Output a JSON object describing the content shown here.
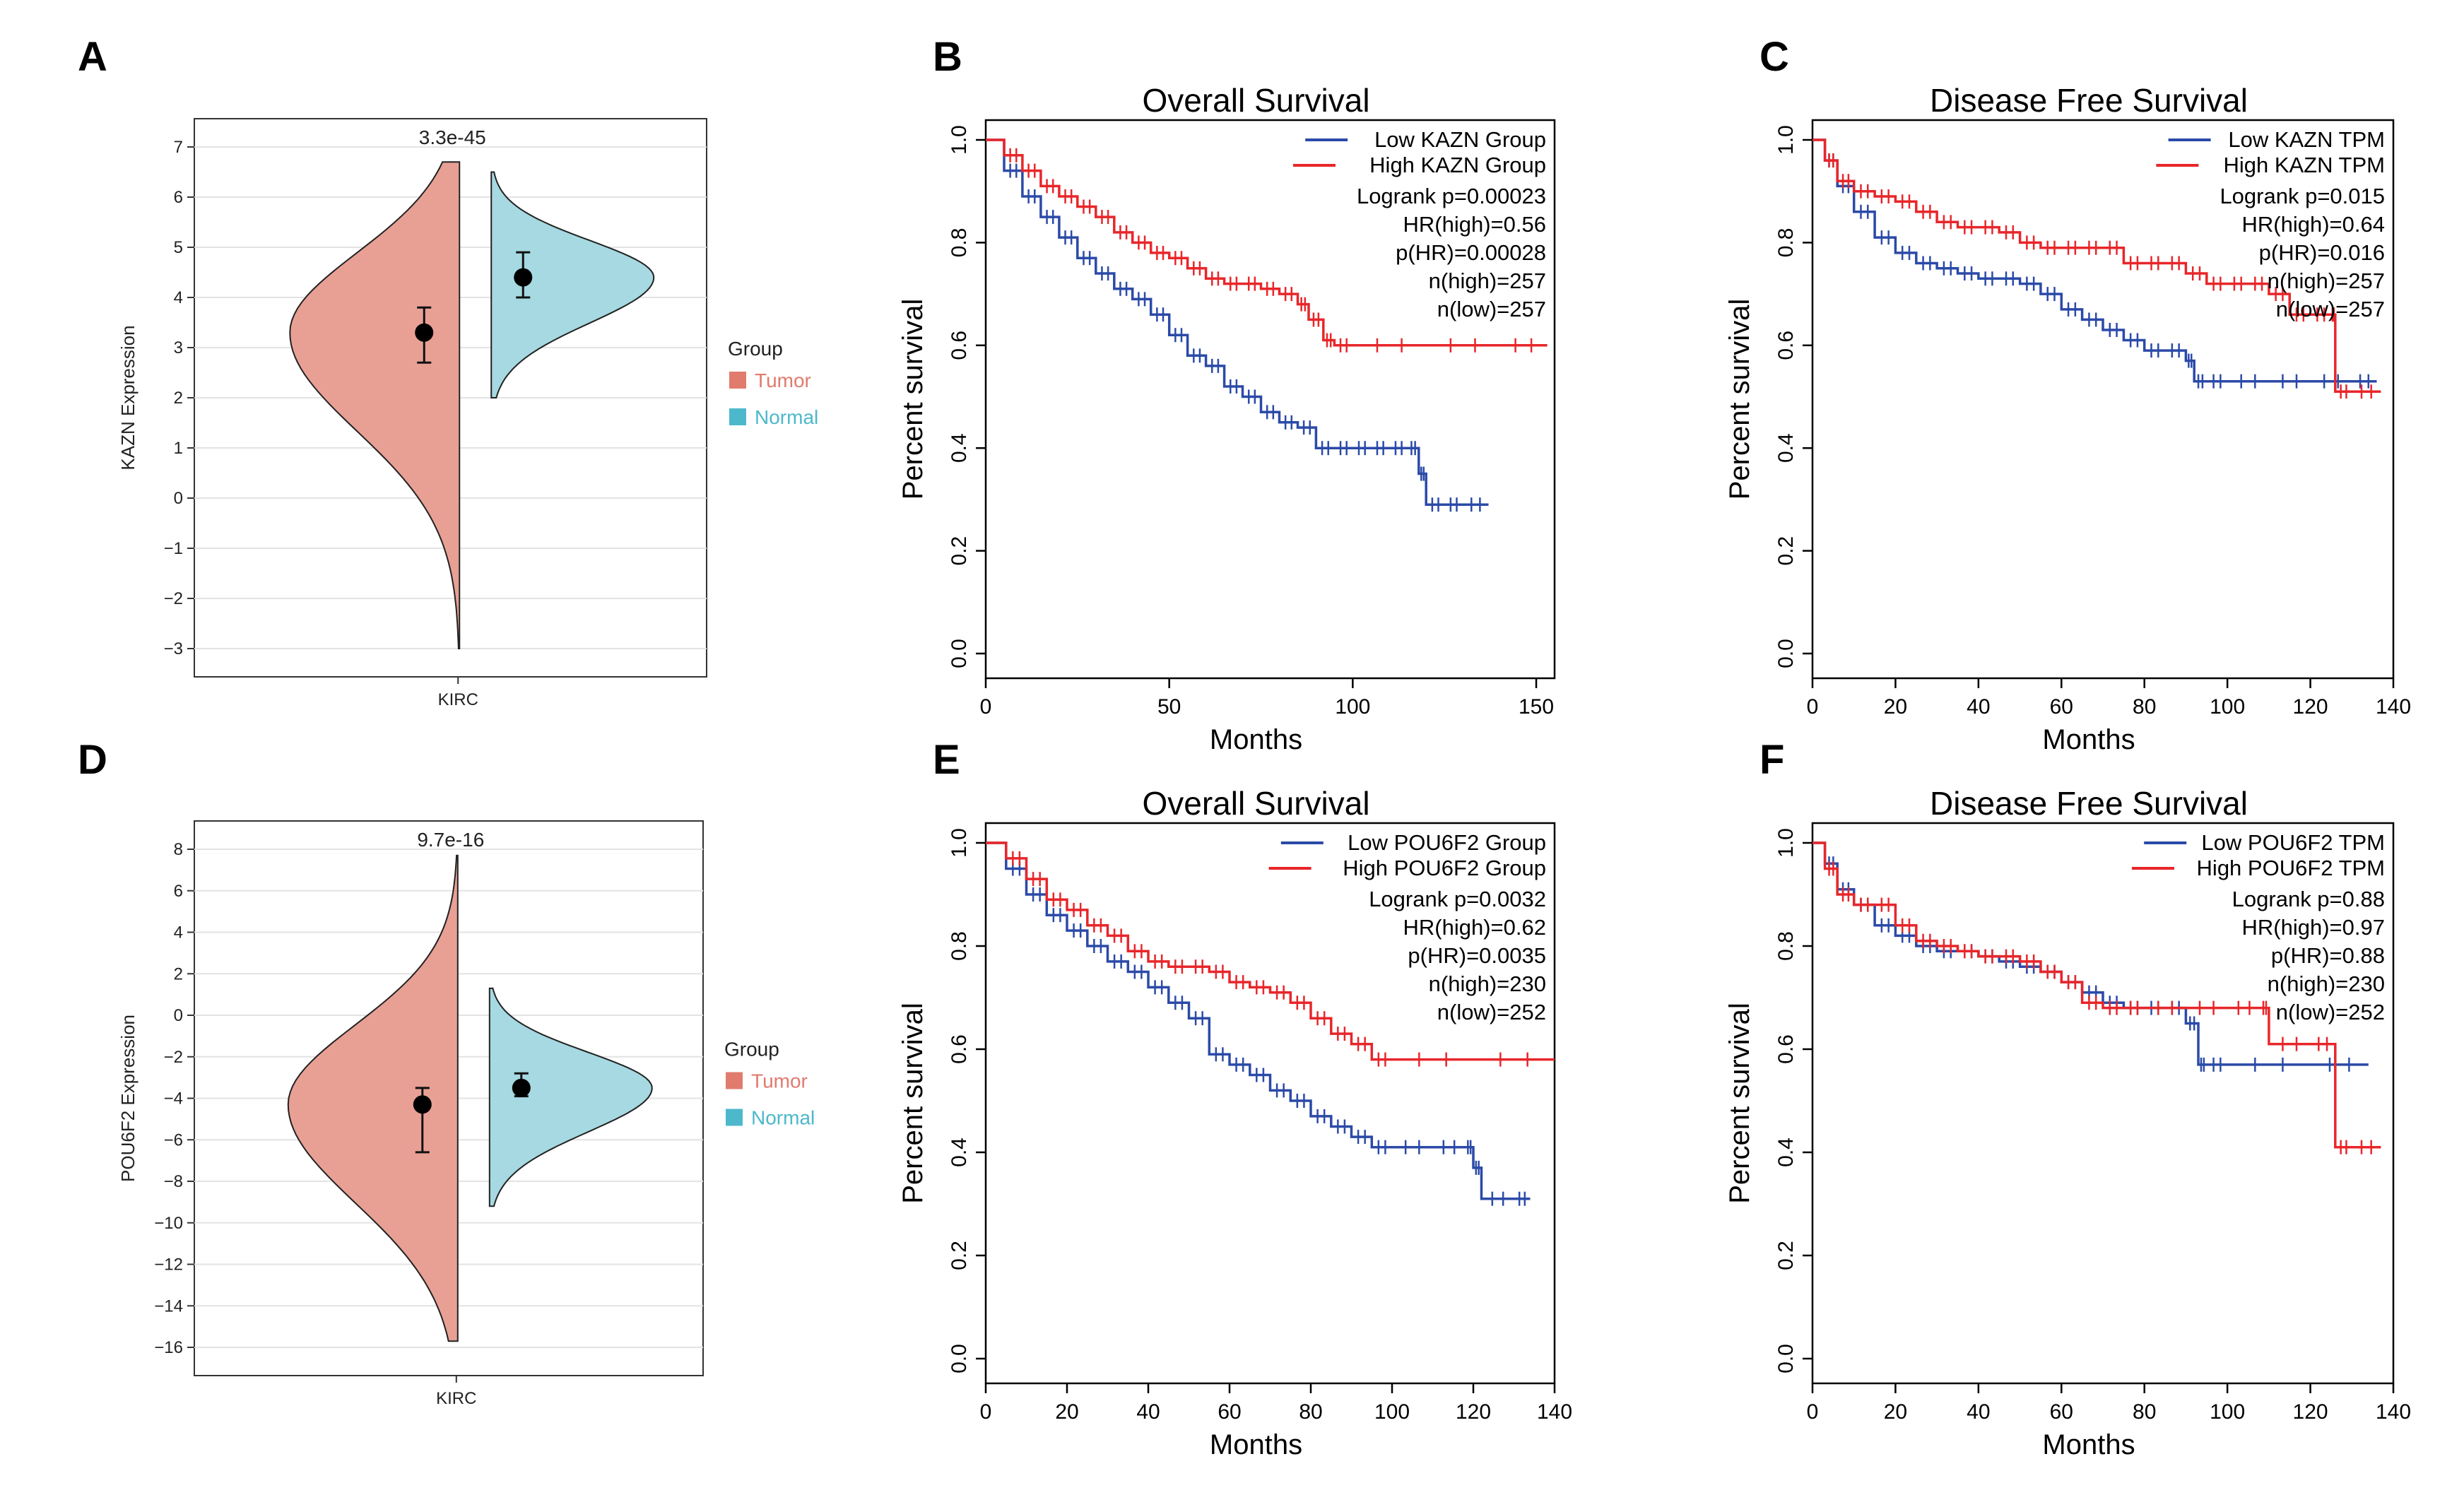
{
  "chart_data": [
    {
      "panel": "A",
      "type": "violin",
      "title": "",
      "ylabel": "KAZN Expression",
      "xlabel": "",
      "category": "KIRC",
      "pvalue": "3.3e-45",
      "ylim": [
        -3,
        7
      ],
      "yticks": [
        "7",
        "6",
        "5",
        "4",
        "3",
        "2",
        "1",
        "0",
        "−1",
        "−2",
        "−3"
      ],
      "legend_title": "Group",
      "groups": [
        {
          "name": "Tumor",
          "color": "#e07b6e",
          "fill": "#e8a095",
          "median": 3.3,
          "q1": 2.7,
          "q3": 3.8,
          "min": -3.0,
          "max": 6.7,
          "peak": 3.3
        },
        {
          "name": "Normal",
          "color": "#4db8cc",
          "fill": "#a6d9e2",
          "median": 4.4,
          "q1": 4.0,
          "q3": 4.9,
          "min": 2.0,
          "max": 6.5,
          "peak": 4.4
        }
      ]
    },
    {
      "panel": "B",
      "type": "line",
      "title": "Overall Survival",
      "xlabel": "Months",
      "ylabel": "Percent survival",
      "xlim": [
        0,
        155
      ],
      "ylim": [
        0,
        1
      ],
      "xticks": [
        0,
        50,
        100,
        150
      ],
      "yticks": [
        "0.0",
        "0.2",
        "0.4",
        "0.6",
        "0.8",
        "1.0"
      ],
      "legend": [
        "Low KAZN Group",
        "High KAZN Group"
      ],
      "stats": [
        "Logrank p=0.00023",
        "HR(high)=0.56",
        "p(HR)=0.00028",
        "n(high)=257",
        "n(low)=257"
      ],
      "series": [
        {
          "name": "Low KAZN Group",
          "color": "#2b4aa8",
          "x": [
            0,
            5,
            10,
            15,
            20,
            25,
            30,
            35,
            40,
            45,
            50,
            55,
            60,
            65,
            70,
            75,
            80,
            85,
            90,
            95,
            100,
            105,
            110,
            115,
            118,
            120,
            125,
            130,
            137
          ],
          "y": [
            1.0,
            0.94,
            0.89,
            0.85,
            0.81,
            0.77,
            0.74,
            0.71,
            0.69,
            0.66,
            0.62,
            0.58,
            0.56,
            0.52,
            0.5,
            0.47,
            0.45,
            0.44,
            0.4,
            0.4,
            0.4,
            0.4,
            0.4,
            0.4,
            0.35,
            0.29,
            0.29,
            0.29,
            0.29
          ]
        },
        {
          "name": "High KAZN Group",
          "color": "#e8262a",
          "x": [
            0,
            5,
            10,
            15,
            20,
            25,
            30,
            35,
            40,
            45,
            50,
            55,
            60,
            65,
            70,
            75,
            80,
            85,
            88,
            92,
            95,
            100,
            120,
            140,
            153
          ],
          "y": [
            1.0,
            0.97,
            0.94,
            0.91,
            0.89,
            0.87,
            0.85,
            0.82,
            0.8,
            0.78,
            0.77,
            0.75,
            0.73,
            0.72,
            0.72,
            0.71,
            0.7,
            0.68,
            0.65,
            0.61,
            0.6,
            0.6,
            0.6,
            0.6,
            0.6
          ]
        }
      ]
    },
    {
      "panel": "C",
      "type": "line",
      "title": "Disease Free Survival",
      "xlabel": "Months",
      "ylabel": "Percent survival",
      "xlim": [
        0,
        140
      ],
      "ylim": [
        0,
        1
      ],
      "xticks": [
        0,
        20,
        40,
        60,
        80,
        100,
        120,
        140
      ],
      "yticks": [
        "0.0",
        "0.2",
        "0.4",
        "0.6",
        "0.8",
        "1.0"
      ],
      "legend": [
        "Low KAZN TPM",
        "High KAZN TPM"
      ],
      "stats": [
        "Logrank p=0.015",
        "HR(high)=0.64",
        "p(HR)=0.016",
        "n(high)=257",
        "n(low)=257"
      ],
      "series": [
        {
          "name": "Low KAZN TPM",
          "color": "#2b4aa8",
          "x": [
            0,
            3,
            6,
            10,
            15,
            20,
            25,
            30,
            35,
            40,
            45,
            50,
            55,
            60,
            65,
            70,
            75,
            80,
            85,
            90,
            92,
            95,
            100,
            110,
            120,
            130,
            136
          ],
          "y": [
            1.0,
            0.96,
            0.91,
            0.86,
            0.81,
            0.78,
            0.76,
            0.75,
            0.74,
            0.73,
            0.73,
            0.72,
            0.7,
            0.67,
            0.65,
            0.63,
            0.61,
            0.59,
            0.59,
            0.57,
            0.53,
            0.53,
            0.53,
            0.53,
            0.53,
            0.53,
            0.53
          ]
        },
        {
          "name": "High KAZN TPM",
          "color": "#e8262a",
          "x": [
            0,
            3,
            6,
            10,
            15,
            20,
            25,
            30,
            35,
            40,
            45,
            50,
            55,
            60,
            65,
            70,
            75,
            80,
            85,
            90,
            95,
            100,
            105,
            110,
            115,
            120,
            125,
            126,
            130,
            137
          ],
          "y": [
            1.0,
            0.96,
            0.92,
            0.9,
            0.89,
            0.88,
            0.86,
            0.84,
            0.83,
            0.83,
            0.82,
            0.8,
            0.79,
            0.79,
            0.79,
            0.79,
            0.76,
            0.76,
            0.76,
            0.74,
            0.72,
            0.72,
            0.72,
            0.7,
            0.66,
            0.66,
            0.66,
            0.51,
            0.51,
            0.51
          ]
        }
      ]
    },
    {
      "panel": "D",
      "type": "violin",
      "title": "",
      "ylabel": "POU6F2 Expression",
      "xlabel": "",
      "category": "KIRC",
      "pvalue": "9.7e-16",
      "ylim": [
        -16,
        8
      ],
      "yticks": [
        "8",
        "6",
        "4",
        "2",
        "0",
        "−2",
        "−4",
        "−6",
        "−8",
        "−10",
        "−12",
        "−14",
        "−16"
      ],
      "legend_title": "Group",
      "groups": [
        {
          "name": "Tumor",
          "color": "#e07b6e",
          "fill": "#e8a095",
          "median": -4.3,
          "q1": -6.6,
          "q3": -3.5,
          "min": -15.7,
          "max": 7.7,
          "peak": -4.3
        },
        {
          "name": "Normal",
          "color": "#4db8cc",
          "fill": "#a6d9e2",
          "median": -3.5,
          "q1": -3.9,
          "q3": -2.8,
          "min": -9.2,
          "max": 1.3,
          "peak": -3.5
        }
      ]
    },
    {
      "panel": "E",
      "type": "line",
      "title": "Overall Survival",
      "xlabel": "Months",
      "ylabel": "Percent survival",
      "xlim": [
        0,
        140
      ],
      "ylim": [
        0,
        1
      ],
      "xticks": [
        0,
        20,
        40,
        60,
        80,
        100,
        120,
        140
      ],
      "yticks": [
        "0.0",
        "0.2",
        "0.4",
        "0.6",
        "0.8",
        "1.0"
      ],
      "legend": [
        "Low POU6F2 Group",
        "High POU6F2 Group"
      ],
      "stats": [
        "Logrank p=0.0032",
        "HR(high)=0.62",
        "p(HR)=0.0035",
        "n(high)=230",
        "n(low)=252"
      ],
      "series": [
        {
          "name": "Low POU6F2 Group",
          "color": "#2b4aa8",
          "x": [
            0,
            5,
            10,
            15,
            20,
            25,
            30,
            35,
            40,
            45,
            50,
            55,
            60,
            65,
            70,
            75,
            80,
            85,
            90,
            95,
            100,
            110,
            118,
            120,
            122,
            130,
            134
          ],
          "y": [
            1.0,
            0.95,
            0.9,
            0.86,
            0.83,
            0.8,
            0.77,
            0.75,
            0.72,
            0.69,
            0.66,
            0.59,
            0.57,
            0.55,
            0.52,
            0.5,
            0.47,
            0.45,
            0.43,
            0.41,
            0.41,
            0.41,
            0.41,
            0.37,
            0.31,
            0.31,
            0.31
          ]
        },
        {
          "name": "High POU6F2 Group",
          "color": "#e8262a",
          "x": [
            0,
            5,
            10,
            15,
            20,
            25,
            30,
            35,
            40,
            45,
            50,
            55,
            60,
            65,
            70,
            75,
            80,
            85,
            90,
            95,
            100,
            120,
            140
          ],
          "y": [
            1.0,
            0.97,
            0.93,
            0.89,
            0.87,
            0.84,
            0.82,
            0.79,
            0.77,
            0.76,
            0.76,
            0.75,
            0.73,
            0.72,
            0.71,
            0.69,
            0.66,
            0.63,
            0.61,
            0.58,
            0.58,
            0.58,
            0.58
          ]
        }
      ]
    },
    {
      "panel": "F",
      "type": "line",
      "title": "Disease Free Survival",
      "xlabel": "Months",
      "ylabel": "Percent survival",
      "xlim": [
        0,
        140
      ],
      "ylim": [
        0,
        1
      ],
      "xticks": [
        0,
        20,
        40,
        60,
        80,
        100,
        120,
        140
      ],
      "yticks": [
        "0.0",
        "0.2",
        "0.4",
        "0.6",
        "0.8",
        "1.0"
      ],
      "legend": [
        "Low POU6F2 TPM",
        "High POU6F2 TPM"
      ],
      "stats": [
        "Logrank p=0.88",
        "HR(high)=0.97",
        "p(HR)=0.88",
        "n(high)=230",
        "n(low)=252"
      ],
      "series": [
        {
          "name": "Low POU6F2 TPM",
          "color": "#2b4aa8",
          "x": [
            0,
            3,
            6,
            10,
            15,
            20,
            25,
            30,
            35,
            40,
            45,
            50,
            55,
            60,
            65,
            70,
            75,
            80,
            85,
            90,
            93,
            95,
            100,
            120,
            134
          ],
          "y": [
            1.0,
            0.96,
            0.91,
            0.88,
            0.84,
            0.82,
            0.8,
            0.79,
            0.79,
            0.78,
            0.77,
            0.76,
            0.75,
            0.73,
            0.71,
            0.69,
            0.68,
            0.68,
            0.68,
            0.65,
            0.57,
            0.57,
            0.57,
            0.57,
            0.57
          ]
        },
        {
          "name": "High POU6F2 TPM",
          "color": "#e8262a",
          "x": [
            0,
            3,
            6,
            10,
            15,
            20,
            25,
            30,
            35,
            40,
            45,
            50,
            55,
            60,
            65,
            70,
            75,
            80,
            90,
            100,
            108,
            110,
            120,
            126,
            130,
            137
          ],
          "y": [
            1.0,
            0.95,
            0.9,
            0.88,
            0.88,
            0.84,
            0.81,
            0.8,
            0.79,
            0.78,
            0.78,
            0.77,
            0.75,
            0.73,
            0.69,
            0.68,
            0.68,
            0.68,
            0.68,
            0.68,
            0.68,
            0.61,
            0.61,
            0.41,
            0.41,
            0.41
          ]
        }
      ]
    }
  ]
}
